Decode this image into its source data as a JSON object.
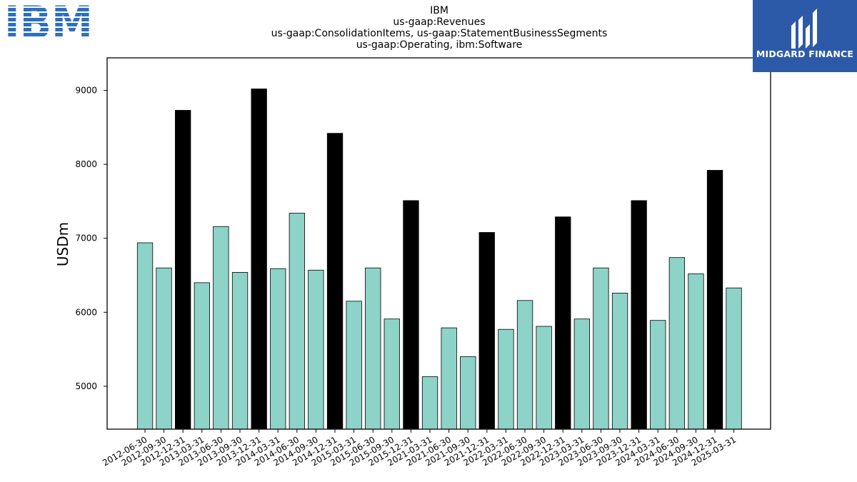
{
  "chart_data": {
    "type": "bar",
    "title_lines": [
      "IBM",
      "us-gaap:Revenues",
      "us-gaap:ConsolidationItems, us-gaap:StatementBusinessSegments",
      "us-gaap:Operating, ibm:Software"
    ],
    "xlabel": "",
    "ylabel": "USDm",
    "ylim": [
      4420,
      9440
    ],
    "yticks": [
      5000,
      6000,
      7000,
      8000,
      9000
    ],
    "grid": false,
    "categories": [
      "2012-06-30",
      "2012-09-30",
      "2012-12-31",
      "2013-03-31",
      "2013-06-30",
      "2013-09-30",
      "2013-12-31",
      "2014-03-31",
      "2014-06-30",
      "2014-09-30",
      "2014-12-31",
      "2015-03-31",
      "2015-06-30",
      "2015-09-30",
      "2015-12-31",
      "2021-03-31",
      "2021-06-30",
      "2021-09-30",
      "2021-12-31",
      "2022-03-31",
      "2022-06-30",
      "2022-09-30",
      "2022-12-31",
      "2023-03-31",
      "2023-06-30",
      "2023-09-30",
      "2023-12-31",
      "2024-03-31",
      "2024-06-30",
      "2024-09-30",
      "2024-12-31",
      "2025-03-31"
    ],
    "values": [
      6940,
      6600,
      8730,
      6400,
      7160,
      6540,
      9020,
      6590,
      7340,
      6570,
      8420,
      6150,
      6600,
      5910,
      7510,
      5130,
      5790,
      5400,
      7080,
      5770,
      6160,
      5810,
      7290,
      5910,
      6600,
      6260,
      7510,
      5890,
      6740,
      6520,
      7920,
      6330
    ],
    "colors": {
      "regular": "#8dd3c7",
      "year_end": "#000000",
      "edge": "#000000"
    }
  },
  "logos": {
    "ibm": {
      "text": "IBM",
      "color": "#2f6fbf"
    },
    "midgard": {
      "text": "MIDGARD FINANCE",
      "background": "#2d5aa8"
    }
  }
}
